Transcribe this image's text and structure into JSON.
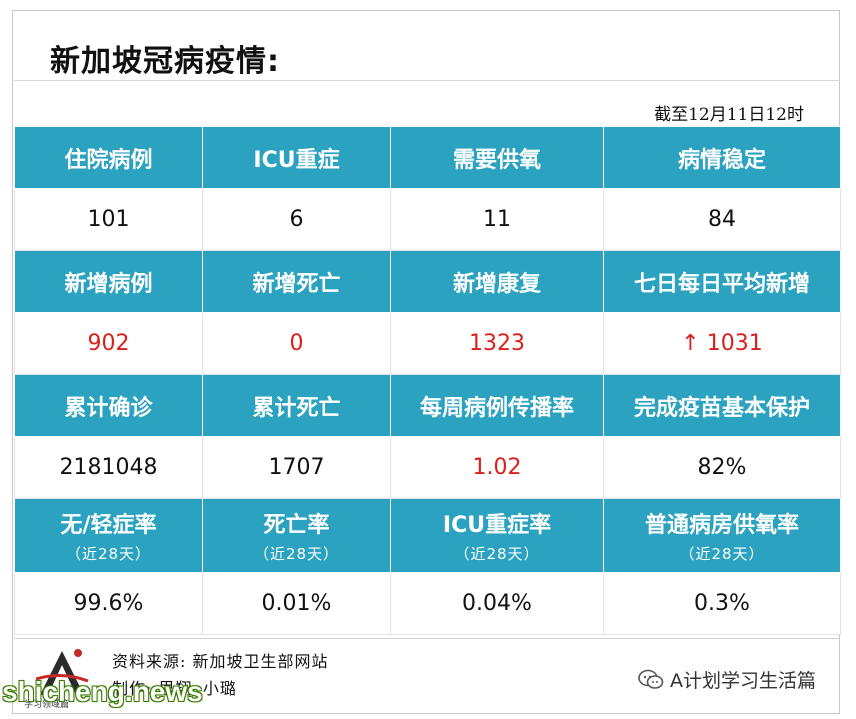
{
  "title": "新加坡冠病疫情:",
  "as_of": "截至12月11日12时",
  "rows": [
    {
      "type": "head",
      "cells": [
        {
          "label": "住院病例"
        },
        {
          "label": "ICU重症"
        },
        {
          "label": "需要供氧"
        },
        {
          "label": "病情稳定"
        }
      ]
    },
    {
      "type": "val",
      "cells": [
        {
          "value": "101"
        },
        {
          "value": "6"
        },
        {
          "value": "11"
        },
        {
          "value": "84"
        }
      ]
    },
    {
      "type": "head",
      "cells": [
        {
          "label": "新增病例"
        },
        {
          "label": "新增死亡"
        },
        {
          "label": "新增康复"
        },
        {
          "label": "七日每日平均新增"
        }
      ]
    },
    {
      "type": "val",
      "cells": [
        {
          "value": "902",
          "color": "#d9201c"
        },
        {
          "value": "0",
          "color": "#d9201c"
        },
        {
          "value": "1323",
          "color": "#d9201c"
        },
        {
          "value": "↑ 1031",
          "color": "#d9201c"
        }
      ]
    },
    {
      "type": "head",
      "cells": [
        {
          "label": "累计确诊"
        },
        {
          "label": "累计死亡"
        },
        {
          "label": "每周病例传播率"
        },
        {
          "label": "完成疫苗基本保护"
        }
      ]
    },
    {
      "type": "val",
      "cells": [
        {
          "value": "2181048"
        },
        {
          "value": "1707"
        },
        {
          "value": "1.02",
          "color": "#d9201c"
        },
        {
          "value": "82%"
        }
      ]
    },
    {
      "type": "head2",
      "cells": [
        {
          "label": "无/轻症率",
          "sub": "（近28天）"
        },
        {
          "label": "死亡率",
          "sub": "（近28天）"
        },
        {
          "label": "ICU重症率",
          "sub": "（近28天）"
        },
        {
          "label": "普通病房供氧率",
          "sub": "（近28天）"
        }
      ]
    },
    {
      "type": "val",
      "cells": [
        {
          "value": "99.6%"
        },
        {
          "value": "0.01%"
        },
        {
          "value": "0.04%"
        },
        {
          "value": "0.3%"
        }
      ]
    }
  ],
  "footer": {
    "source": "资料来源: 新加坡卫生部网站",
    "maker": "制作: 思翔•小璐",
    "logo_text": "学习领域篇",
    "wechat_account": "A计划学习生活篇",
    "watermark": "shicheng.news"
  },
  "colors": {
    "header_bg": "#2ba2bf",
    "highlight": "#d9201c"
  }
}
